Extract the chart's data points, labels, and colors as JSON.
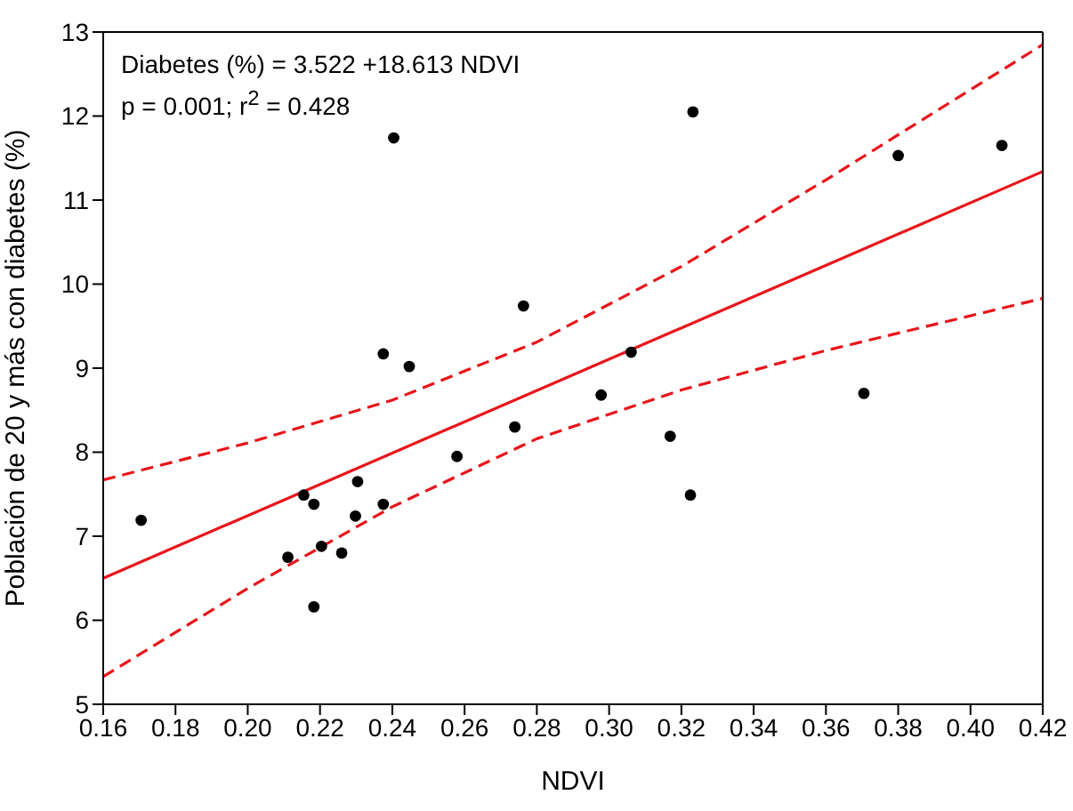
{
  "chart_data": {
    "type": "scatter",
    "xlabel": "NDVI",
    "ylabel": "Población de 20 y más con diabetes (%)",
    "annotations": [
      "Diabetes (%) = 3.522 +18.613 NDVI",
      "p = 0.001; r$^{2}$ = 0.428"
    ],
    "xlim": [
      0.16,
      0.42
    ],
    "xticks": [
      {
        "value": 0.16,
        "label": "0.16"
      },
      {
        "value": 0.18,
        "label": "0.18"
      },
      {
        "value": 0.2,
        "label": "0.20"
      },
      {
        "value": 0.22,
        "label": "0.22"
      },
      {
        "value": 0.24,
        "label": "0.24"
      },
      {
        "value": 0.26,
        "label": "0.26"
      },
      {
        "value": 0.28,
        "label": "0.28"
      },
      {
        "value": 0.3,
        "label": "0.30"
      },
      {
        "value": 0.32,
        "label": "0.32"
      },
      {
        "value": 0.34,
        "label": "0.34"
      },
      {
        "value": 0.36,
        "label": "0.36"
      },
      {
        "value": 0.38,
        "label": "0.38"
      },
      {
        "value": 0.4,
        "label": "0.40"
      },
      {
        "value": 0.42,
        "label": "0.42"
      }
    ],
    "ylim": [
      5,
      13
    ],
    "yticks": [
      5,
      6,
      7,
      8,
      9,
      10,
      11,
      12,
      13
    ],
    "grid": false,
    "legend": false,
    "series": [
      {
        "type": "scatter",
        "color": "#000000",
        "marker": "circle",
        "x": [
          0.1705,
          0.2111,
          0.2155,
          0.2183,
          0.2183,
          0.2204,
          0.226,
          0.2298,
          0.2304,
          0.2375,
          0.2375,
          0.2447,
          0.2579,
          0.2739,
          0.2404,
          0.2763,
          0.3232,
          0.38,
          0.4087,
          0.3061,
          0.2978,
          0.3169,
          0.3225,
          0.3705
        ],
        "values": [
          7.19,
          6.75,
          7.49,
          7.38,
          6.16,
          6.88,
          6.8,
          7.24,
          7.65,
          7.38,
          9.17,
          9.02,
          7.95,
          8.3,
          11.74,
          9.74,
          12.05,
          11.53,
          11.65,
          9.19,
          8.68,
          8.19,
          7.49,
          8.7
        ]
      },
      {
        "type": "line",
        "color": "#e8141a",
        "marker": "none",
        "line_style": "solid",
        "x": [
          0.16,
          0.42
        ],
        "values": [
          6.5,
          11.34
        ]
      },
      {
        "type": "line",
        "color": "#e8141a",
        "marker": "none",
        "line_style": "dashed",
        "x": [
          0.16,
          0.2,
          0.24,
          0.28,
          0.32,
          0.36,
          0.42
        ],
        "values": [
          7.67,
          8.11,
          8.62,
          9.31,
          10.21,
          11.24,
          12.85
        ]
      },
      {
        "type": "line",
        "color": "#e8141a",
        "marker": "none",
        "line_style": "dashed",
        "x": [
          0.16,
          0.2,
          0.24,
          0.28,
          0.32,
          0.36,
          0.42
        ],
        "values": [
          5.33,
          6.38,
          7.35,
          8.16,
          8.74,
          9.21,
          9.83
        ]
      }
    ]
  }
}
